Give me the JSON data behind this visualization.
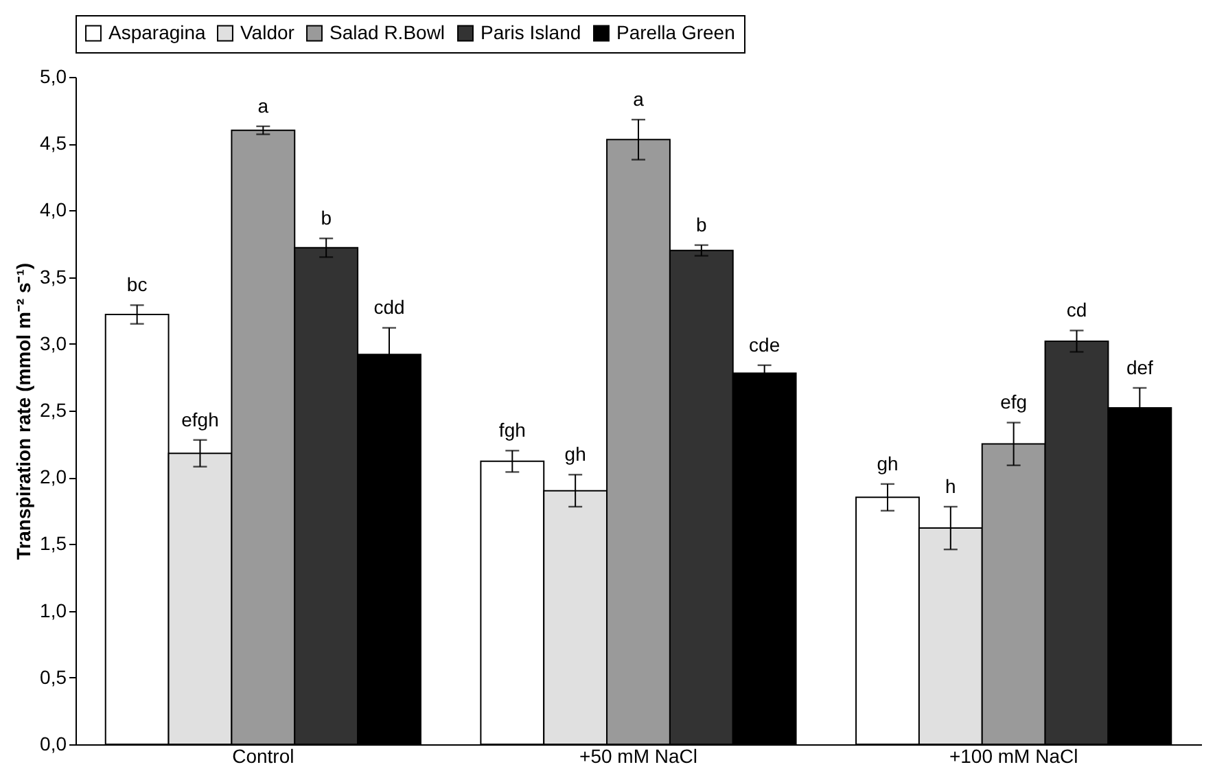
{
  "chart_data": {
    "type": "bar",
    "ylabel": "Transpiration rate (mmol m⁻² s⁻¹)",
    "categories": [
      "Control",
      "+50 mM NaCl",
      "+100 mM NaCl"
    ],
    "series": [
      {
        "name": "Asparagina",
        "color": "#ffffff",
        "values": [
          3.22,
          2.12,
          1.85
        ],
        "errors": [
          0.07,
          0.08,
          0.1
        ],
        "value_labels": [
          "bc",
          "fgh",
          "gh"
        ]
      },
      {
        "name": "Valdor",
        "color": "#e0e0e0",
        "values": [
          2.18,
          1.9,
          1.62
        ],
        "errors": [
          0.1,
          0.12,
          0.16
        ],
        "value_labels": [
          "efgh",
          "gh",
          "h"
        ]
      },
      {
        "name": "Salad R.Bowl",
        "color": "#9a9a9a",
        "values": [
          4.6,
          4.53,
          2.25
        ],
        "errors": [
          0.03,
          0.15,
          0.16
        ],
        "value_labels": [
          "a",
          "a",
          "efg"
        ]
      },
      {
        "name": "Paris Island",
        "color": "#333333",
        "values": [
          3.72,
          3.7,
          3.02
        ],
        "errors": [
          0.07,
          0.04,
          0.08
        ],
        "value_labels": [
          "b",
          "b",
          "cd"
        ]
      },
      {
        "name": "Parella Green",
        "color": "#000000",
        "values": [
          2.92,
          2.78,
          2.52
        ],
        "errors": [
          0.2,
          0.06,
          0.15
        ],
        "value_labels": [
          "cdd",
          "cde",
          "def"
        ]
      }
    ],
    "ylim": [
      0,
      5
    ],
    "yticks": [
      {
        "value": 0,
        "label": "0,0"
      },
      {
        "value": 0.5,
        "label": "0,5"
      },
      {
        "value": 1,
        "label": "1,0"
      },
      {
        "value": 1.5,
        "label": "1,5"
      },
      {
        "value": 2,
        "label": "2,0"
      },
      {
        "value": 2.5,
        "label": "2,5"
      },
      {
        "value": 3,
        "label": "3,0"
      },
      {
        "value": 3.5,
        "label": "3,5"
      },
      {
        "value": 4,
        "label": "4,0"
      },
      {
        "value": 4.5,
        "label": "4,5"
      },
      {
        "value": 5,
        "label": "5,0"
      }
    ],
    "legend": "top",
    "grid": false
  }
}
